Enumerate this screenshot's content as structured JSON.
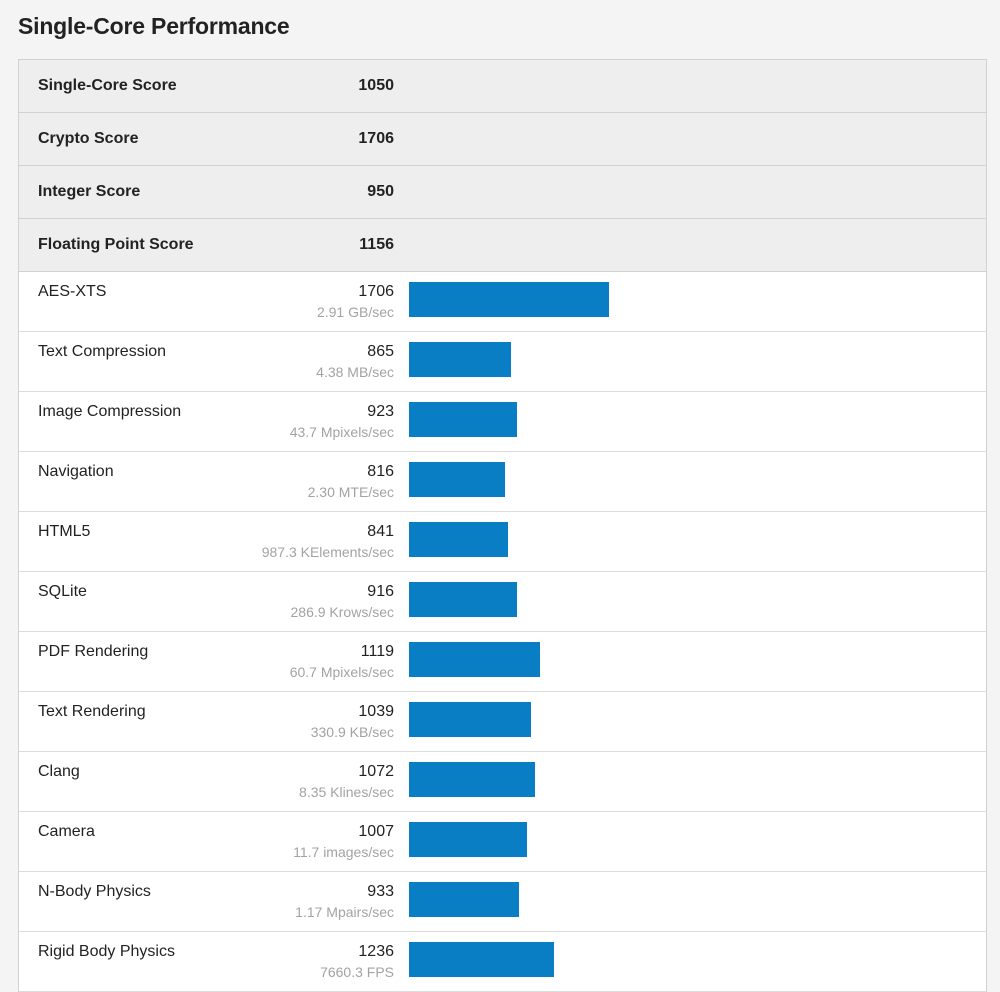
{
  "page": {
    "title": "Single-Core Performance"
  },
  "colors": {
    "bar": "#0a7ec4",
    "summary_background": "#eeeeee",
    "rate_text": "#a3a3a3"
  },
  "summary": [
    {
      "name": "Single-Core Score",
      "score": "1050"
    },
    {
      "name": "Crypto Score",
      "score": "1706"
    },
    {
      "name": "Integer Score",
      "score": "950"
    },
    {
      "name": "Floating Point Score",
      "score": "1156"
    }
  ],
  "chart_data": {
    "type": "bar",
    "categories": [
      "AES-XTS",
      "Text Compression",
      "Image Compression",
      "Navigation",
      "HTML5",
      "SQLite",
      "PDF Rendering",
      "Text Rendering",
      "Clang",
      "Camera",
      "N-Body Physics",
      "Rigid Body Physics"
    ],
    "values": [
      1706,
      865,
      923,
      816,
      841,
      916,
      1119,
      1039,
      1072,
      1007,
      933,
      1236
    ],
    "rates": [
      "2.91 GB/sec",
      "4.38 MB/sec",
      "43.7 Mpixels/sec",
      "2.30 MTE/sec",
      "987.3 KElements/sec",
      "286.9 Krows/sec",
      "60.7 Mpixels/sec",
      "330.9 KB/sec",
      "8.35 Klines/sec",
      "11.7 images/sec",
      "1.17 Mpairs/sec",
      "7660.3 FPS"
    ],
    "title": "",
    "xlabel": "",
    "ylabel": "",
    "xlim": [
      0,
      9200
    ]
  }
}
